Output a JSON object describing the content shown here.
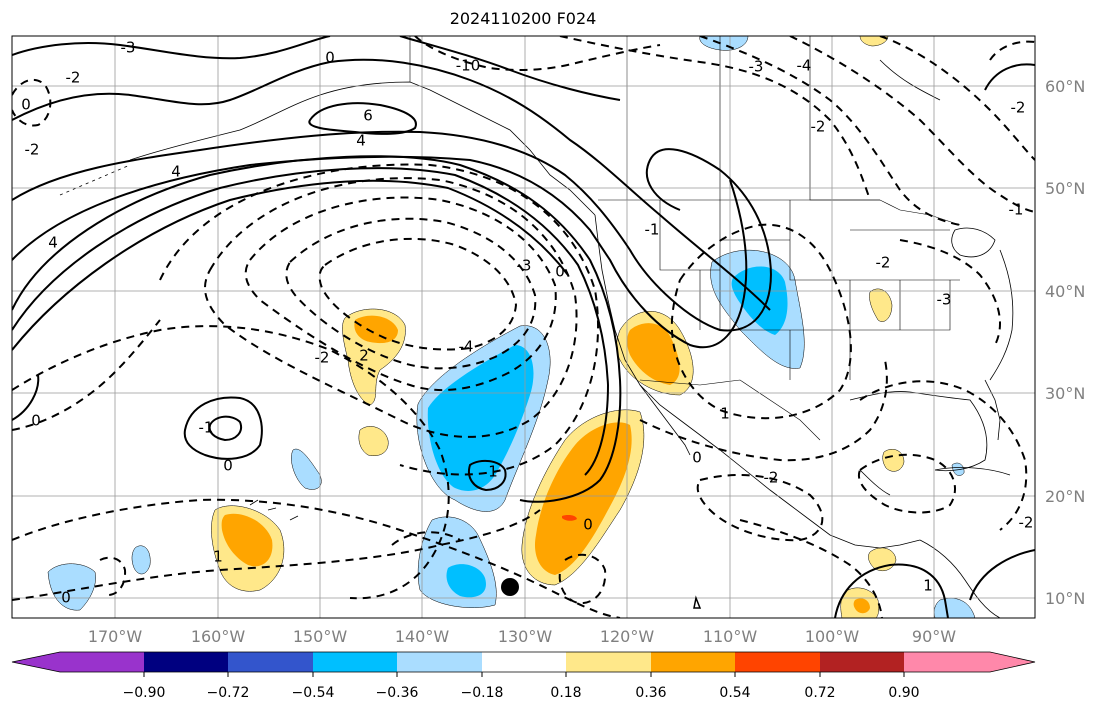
{
  "title": "2024110200 F024",
  "lat_labels": [
    "60°N",
    "50°N",
    "40°N",
    "30°N",
    "20°N",
    "10°N"
  ],
  "lon_labels": [
    "170°W",
    "160°W",
    "150°W",
    "140°W",
    "130°W",
    "120°W",
    "110°W",
    "100°W",
    "90°W"
  ],
  "colorbar": {
    "colors": [
      "#9933cc",
      "#000080",
      "#3355cc",
      "#00bfff",
      "#aaddff",
      "#ffffff",
      "#ffe88a",
      "#ffa500",
      "#ff4400",
      "#b22222",
      "#ff88aa"
    ],
    "tick_labels": [
      "−0.90",
      "−0.72",
      "−0.54",
      "−0.36",
      "−0.18",
      "0.18",
      "0.36",
      "0.54",
      "0.72",
      "0.90"
    ]
  },
  "contour_labels": [
    {
      "text": "-3"
    },
    {
      "text": "-2"
    },
    {
      "text": "0"
    },
    {
      "text": "0"
    },
    {
      "text": "-2"
    },
    {
      "text": "-10"
    },
    {
      "text": "-3"
    },
    {
      "text": "-4"
    },
    {
      "text": "-2"
    },
    {
      "text": "-2"
    },
    {
      "text": "6"
    },
    {
      "text": "4"
    },
    {
      "text": "4"
    },
    {
      "text": "4"
    },
    {
      "text": "-1"
    },
    {
      "text": "-4"
    },
    {
      "text": "-3"
    },
    {
      "text": "0"
    },
    {
      "text": "-2"
    },
    {
      "text": "2"
    },
    {
      "text": "1"
    },
    {
      "text": "0"
    },
    {
      "text": "0"
    },
    {
      "text": "-1"
    },
    {
      "text": "1"
    },
    {
      "text": "0"
    },
    {
      "text": "-1"
    },
    {
      "text": "-2"
    },
    {
      "text": "1"
    },
    {
      "text": "0"
    },
    {
      "text": "-2"
    },
    {
      "text": "-3"
    },
    {
      "text": "0"
    },
    {
      "text": "-2"
    },
    {
      "text": "1"
    }
  ]
}
